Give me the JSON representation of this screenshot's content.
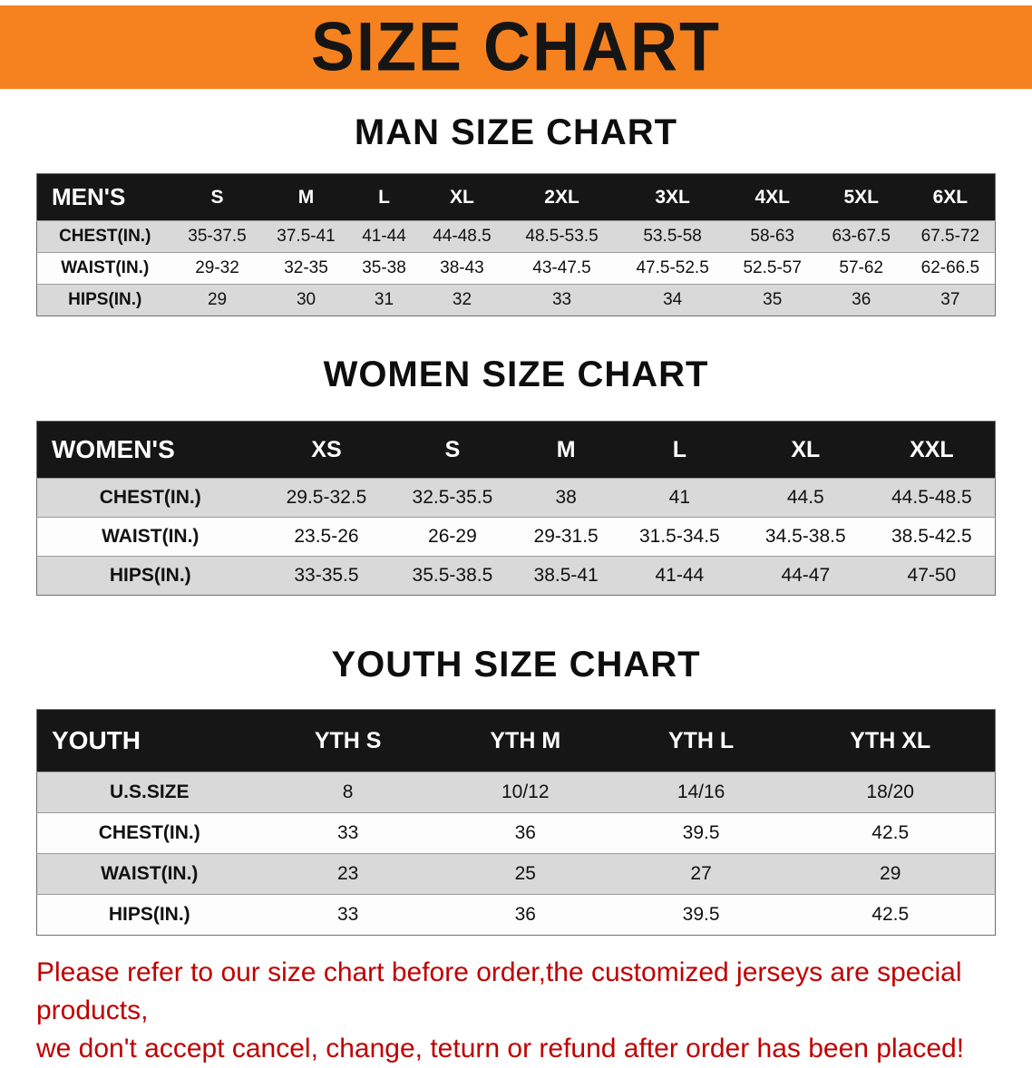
{
  "banner": {
    "title": "SIZE CHART"
  },
  "colors": {
    "banner_bg": "#f5821f",
    "header_bg": "#161616",
    "row_alt_bg": "#d9d9d9",
    "notice_text": "#c00000"
  },
  "sections": [
    {
      "heading": "MAN SIZE CHART",
      "table": {
        "header": [
          "MEN'S",
          "S",
          "M",
          "L",
          "XL",
          "2XL",
          "3XL",
          "4XL",
          "5XL",
          "6XL"
        ],
        "rows": [
          {
            "label": "CHEST(IN.)",
            "values": [
              "35-37.5",
              "37.5-41",
              "41-44",
              "44-48.5",
              "48.5-53.5",
              "53.5-58",
              "58-63",
              "63-67.5",
              "67.5-72"
            ]
          },
          {
            "label": "WAIST(IN.)",
            "values": [
              "29-32",
              "32-35",
              "35-38",
              "38-43",
              "43-47.5",
              "47.5-52.5",
              "52.5-57",
              "57-62",
              "62-66.5"
            ]
          },
          {
            "label": "HIPS(IN.)",
            "values": [
              "29",
              "30",
              "31",
              "32",
              "33",
              "34",
              "35",
              "36",
              "37"
            ]
          }
        ]
      }
    },
    {
      "heading": "WOMEN SIZE CHART",
      "table": {
        "header": [
          "WOMEN'S",
          "XS",
          "S",
          "M",
          "L",
          "XL",
          "XXL"
        ],
        "rows": [
          {
            "label": "CHEST(IN.)",
            "values": [
              "29.5-32.5",
              "32.5-35.5",
              "38",
              "41",
              "44.5",
              "44.5-48.5"
            ]
          },
          {
            "label": "WAIST(IN.)",
            "values": [
              "23.5-26",
              "26-29",
              "29-31.5",
              "31.5-34.5",
              "34.5-38.5",
              "38.5-42.5"
            ]
          },
          {
            "label": "HIPS(IN.)",
            "values": [
              "33-35.5",
              "35.5-38.5",
              "38.5-41",
              "41-44",
              "44-47",
              "47-50"
            ]
          }
        ]
      }
    },
    {
      "heading": "YOUTH SIZE CHART",
      "table": {
        "header": [
          "YOUTH",
          "YTH S",
          "YTH M",
          "YTH L",
          "YTH XL"
        ],
        "rows": [
          {
            "label": "U.S.SIZE",
            "values": [
              "8",
              "10/12",
              "14/16",
              "18/20"
            ]
          },
          {
            "label": "CHEST(IN.)",
            "values": [
              "33",
              "36",
              "39.5",
              "42.5"
            ]
          },
          {
            "label": "WAIST(IN.)",
            "values": [
              "23",
              "25",
              "27",
              "29"
            ]
          },
          {
            "label": "HIPS(IN.)",
            "values": [
              "33",
              "36",
              "39.5",
              "42.5"
            ]
          }
        ]
      }
    }
  ],
  "notice": {
    "line1": "Please refer to our size chart before order,the customized jerseys are special products,",
    "line2": "we don't accept cancel, change, teturn or refund after order has been placed!"
  }
}
